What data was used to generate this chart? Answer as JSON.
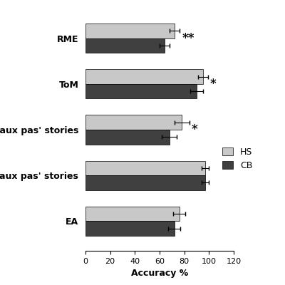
{
  "categories": [
    "RME",
    "ToM",
    "'faux pas' stories",
    "'no-faux pas' stories",
    "EA"
  ],
  "hs_values": [
    72,
    95,
    78,
    97,
    76
  ],
  "cb_values": [
    64,
    90,
    68,
    97,
    72
  ],
  "hs_errors": [
    4,
    4,
    6,
    3,
    5
  ],
  "cb_errors": [
    4,
    5,
    6,
    3,
    5
  ],
  "hs_color": "#c8c8c8",
  "cb_color": "#404040",
  "significance": [
    "**",
    "*",
    "*",
    "",
    ""
  ],
  "xlabel": "Accuracy %",
  "xlim": [
    0,
    120
  ],
  "xticks": [
    0,
    20,
    40,
    60,
    80,
    100,
    120
  ],
  "bar_height": 0.32,
  "legend_labels": [
    "HS",
    "CB"
  ],
  "background_color": "#ffffff",
  "label_fontsize": 9,
  "tick_fontsize": 8,
  "sig_fontsize": 12,
  "ylabel_fontsize": 9
}
